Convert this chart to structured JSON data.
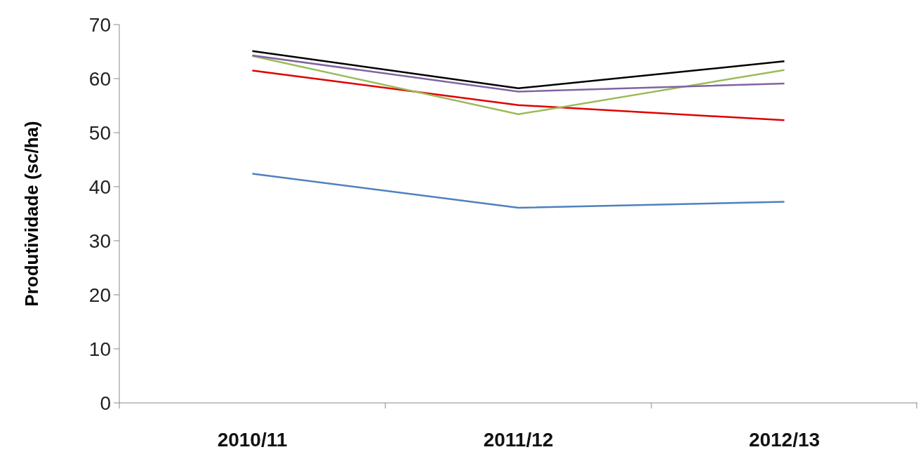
{
  "chart_data": {
    "type": "line",
    "ylabel": "Produtividade  (sc/ha)",
    "categories": [
      "2010/11",
      "2011/12",
      "2012/13"
    ],
    "series": [
      {
        "color": "#4f81bd",
        "values": [
          42.4,
          36.1,
          37.2
        ]
      },
      {
        "color": "#e00000",
        "values": [
          61.5,
          55.1,
          52.3
        ]
      },
      {
        "color": "#9bbb59",
        "values": [
          64.2,
          53.4,
          61.6
        ]
      },
      {
        "color": "#8064a2",
        "values": [
          64.3,
          57.6,
          59.1
        ]
      },
      {
        "color": "#000000",
        "values": [
          65.1,
          58.2,
          63.2
        ]
      }
    ],
    "ylim": [
      0,
      70
    ],
    "yticks": [
      0,
      10,
      20,
      30,
      40,
      50,
      60,
      70
    ],
    "marker": "none",
    "line_style": "solid"
  }
}
